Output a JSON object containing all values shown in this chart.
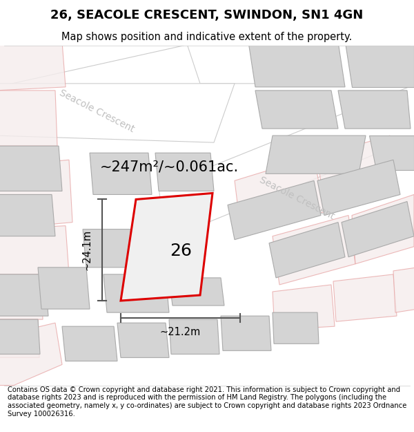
{
  "title": "26, SEACOLE CRESCENT, SWINDON, SN1 4GN",
  "subtitle": "Map shows position and indicative extent of the property.",
  "area_text": "~247m²/~0.061ac.",
  "plot_number": "26",
  "dim_width": "~21.2m",
  "dim_height": "~24.1m",
  "footer": "Contains OS data © Crown copyright and database right 2021. This information is subject to Crown copyright and database rights 2023 and is reproduced with the permission of HM Land Registry. The polygons (including the associated geometry, namely x, y co-ordinates) are subject to Crown copyright and database rights 2023 Ordnance Survey 100026316.",
  "bg_color": "#efefef",
  "road_color": "#ffffff",
  "building_color": "#d4d4d4",
  "building_edge": "#aaaaaa",
  "plot_outline_color": "#dd0000",
  "plot_fill_color": "#f0f0f0",
  "pink_outline": "#e8a8a8",
  "pink_fill": "#f5eded",
  "street_label_color": "#c0c0c0",
  "road_edge": "#cccccc",
  "title_fontsize": 13,
  "subtitle_fontsize": 10.5,
  "area_fontsize": 15,
  "plot_label_fontsize": 18,
  "footer_fontsize": 7.2,
  "dim_fontsize": 10.5
}
